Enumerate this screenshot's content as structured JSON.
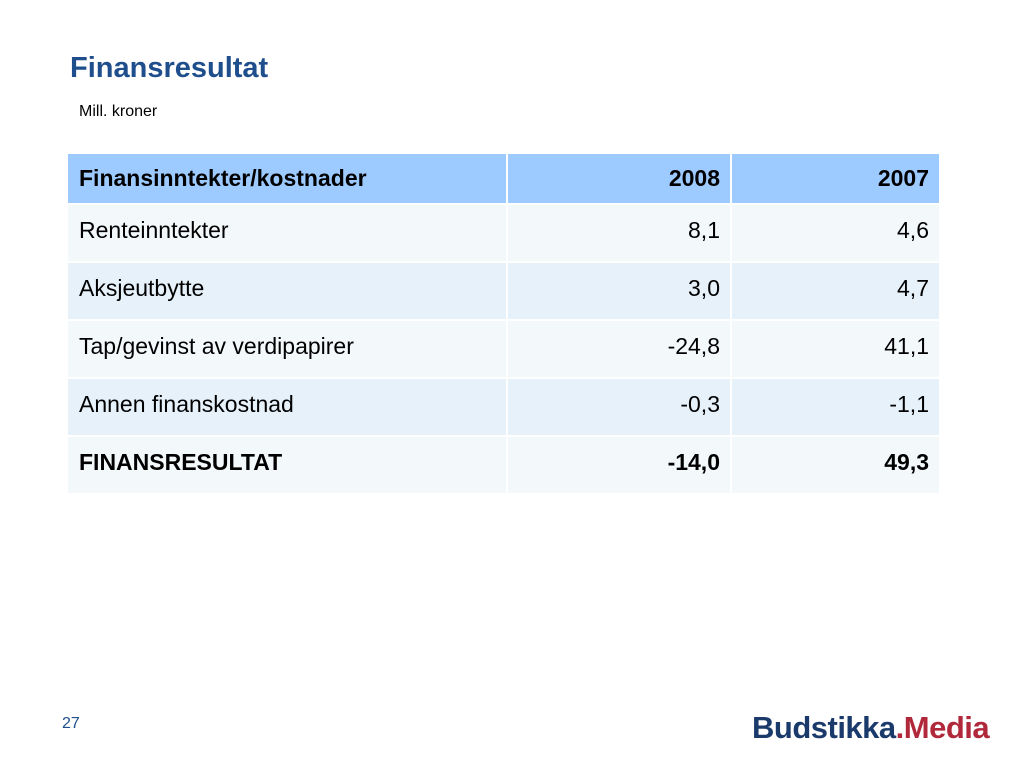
{
  "slide": {
    "title": "Finansresultat",
    "subtitle": "Mill. kroner",
    "page_number": "27"
  },
  "table": {
    "headers": [
      "Finansinntekter/kostnader",
      "2008",
      "2007"
    ],
    "rows": [
      [
        "Renteinntekter",
        "8,1",
        "4,6"
      ],
      [
        "Aksjeutbytte",
        "3,0",
        "4,7"
      ],
      [
        "Tap/gevinst av verdipapirer",
        "-24,8",
        "41,1"
      ],
      [
        "Annen finanskostnad",
        "-0,3",
        "-1,1"
      ],
      [
        "FINANSRESULTAT",
        "-14,0",
        "49,3"
      ]
    ]
  },
  "logo": {
    "brand": "Budstikka",
    "dot": ".",
    "suffix": "Media"
  },
  "colors": {
    "title": "#1f4e8c",
    "header_bg": "#9ecbff",
    "row_light": "#f3f8fb",
    "row_alt": "#e6f1fa",
    "logo_brand": "#1a3a6b",
    "logo_accent": "#b0283a"
  }
}
